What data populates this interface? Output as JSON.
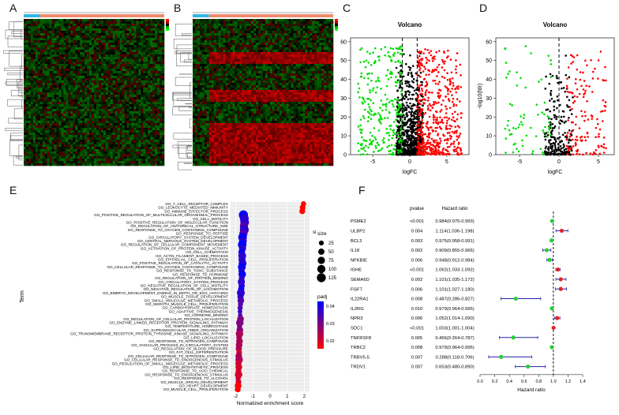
{
  "panels": {
    "A": "A",
    "B": "B",
    "C": "C",
    "D": "D",
    "E": "E",
    "F": "F"
  },
  "chart_data": [
    {
      "panel": "A",
      "type": "heatmap",
      "colors": {
        "high": "#ff0000",
        "mid": "#000000",
        "low": "#00ff00",
        "top_bar_1": "#33b5e5",
        "top_bar_2": "#f08a6c"
      }
    },
    {
      "panel": "B",
      "type": "heatmap",
      "colors": {
        "high": "#ff0000",
        "mid": "#000000",
        "low": "#00ff00",
        "top_bar_1": "#33b5e5",
        "top_bar_2": "#f08a6c"
      }
    },
    {
      "panel": "C",
      "type": "scatter",
      "title": "Volcano",
      "xlabel": "logFC",
      "ylabel": "",
      "xticks": [
        -5,
        0,
        5
      ],
      "yticks": [
        0,
        10,
        20,
        30,
        40,
        50,
        60
      ],
      "xlim": [
        -8,
        8
      ],
      "ylim": [
        0,
        62
      ],
      "thresholds": {
        "x": [
          -1,
          1
        ],
        "y": 2
      },
      "colors": {
        "up": "#ff0000",
        "down": "#00dd00",
        "ns": "#000000"
      }
    },
    {
      "panel": "D",
      "type": "scatter",
      "title": "Volcano",
      "xlabel": "logFC",
      "ylabel": "-log10(fdr)",
      "xticks": [
        -5,
        0,
        5
      ],
      "yticks": [
        0,
        10,
        20,
        30,
        40,
        50,
        60
      ],
      "xlim": [
        -8,
        7
      ],
      "ylim": [
        0,
        62
      ],
      "thresholds": {
        "x": [
          0
        ],
        "y": 0
      },
      "colors": {
        "up": "#ff0000",
        "down": "#00dd00",
        "ns": "#000000"
      }
    },
    {
      "panel": "E",
      "type": "scatter",
      "xlabel": "Normalized enrichment score",
      "ylabel": "Term",
      "xticks": [
        -2,
        -1,
        0,
        1,
        2
      ],
      "xlim": [
        -2.3,
        2.3
      ],
      "terms": [
        "GO_T_CELL_RECEPTOR_COMPLEX",
        "GO_LEUKOCYTE_MEDIATED_IMMUNITY",
        "GO_IMMUNE_EFFECTOR_PROCESS",
        "GO_POSITIVE_REGULATION_OF_MULTICELLULAR_ORGANISMAL_PROCESS",
        "GO_CELL_MOTILITY",
        "GO_POSITIVE_REGULATION_OF_MOLECULAR_FUNCTION",
        "GO_REGULATION_OF_ANATOMICAL_STRUCTURE_SIZE",
        "GO_RESPONSE_TO_OXYGEN_CONTAINING_COMPOUND",
        "GO_RESPONSE_TO_PEPTIDE",
        "GO_CIRCULATORY_SYSTEM_DEVELOPMENT",
        "GO_CENTRAL_NERVOUS_SYSTEM_DEVELOPMENT",
        "GO_REGULATION_OF_CELLULAR_COMPONENT_MOVEMENT",
        "GO_ACTIVATION_OF_PROTEIN_KINASE_ACTIVITY",
        "GO_CELL_CHEMOTAXIS",
        "GO_ACTIN_FILAMENT_BASED_PROCESS",
        "GO_EPITHELIAL_CELL_PROLIFERATION",
        "GO_POSITIVE_REGULATION_OF_CATALYTIC_ACTIVITY",
        "GO_CELLULAR_RESPONSE_TO_OXYGEN_CONTAINING_COMPOUND",
        "GO_RESPONSE_TO_TOXIC_SUBSTANCE",
        "GO_RESPONSE_TO_HORMONE",
        "GO_REGULATION_OF_PROTEIN_BINDING",
        "GO_CIRCULATORY_SYSTEM_PROCESS",
        "GO_NEGATIVE_REGULATION_OF_CELL_MOTILITY",
        "GO_NEGATIVE_REGULATION_OF_LOCOMOTION",
        "GO_EMBRYO_DEVELOPMENT_ENDING_IN_BIRTH_OR_EGG_HATCHING",
        "GO_MUSCLE_TISSUE_DEVELOPMENT",
        "GO_SMALL_MOLECULE_METABOLIC_PROCESS",
        "GO_SMOOTH_MUSCLE_CELL_PROLIFERATION",
        "GO_CARBOHYDRATE_HOMEOSTASIS",
        "GO_ADAPTIVE_THERMOGENESIS",
        "GO_HORMONE_BINDING",
        "GO_REGULATION_OF_CELLULAR_PROTEIN_LOCALIZATION",
        "GO_ENZYME_LINKED_RECEPTOR_PROTEIN_SIGNALING_PATHWAY",
        "GO_TEMPERATURE_HOMEOSTASIS",
        "GO_SUPRAMOLECULAR_FIBER_ORGANIZATION",
        "GO_TRANSMEMBRANE_RECEPTOR_PROTEIN_TYROSINE_KINASE_SIGNALING_PATHWAY",
        "GO_LIPID_LOCALIZATION",
        "GO_RESPONSE_TO_NITROGEN_COMPOUND",
        "GO_VASCULAR_PROCESS_IN_CIRCULATORY_SYSTEM",
        "GO_REGULATION_OF_BLOOD_PRESSURE",
        "GO_FAT_CELL_DIFFERENTIATION",
        "GO_CELLULAR_RESPONSE_TO_NITROGEN_COMPOUND",
        "GO_CELLULAR_RESPONSE_TO_ENDOGENOUS_STIMULUS",
        "GO_REGULATION_OF_SMALL_MOLECULE_METABOLIC_PROCESS",
        "GO_LIPID_BIOSYNTHETIC_PROCESS",
        "GO_RESPONSE_TO_ACID_CHEMICAL",
        "GO_RESPONSE_TO_ENDOGENOUS_STIMULUS",
        "GO_RESPONSE_TO_ALCOHOL",
        "GO_MUSCLE_ORGAN_DEVELOPMENT",
        "GO_HEART_DEVELOPMENT",
        "GO_MUSCLE_CELL_PROLIFERATION"
      ],
      "nes": [
        1.95,
        1.9,
        1.88,
        -1.55,
        -1.5,
        -1.48,
        -1.52,
        -1.5,
        -1.55,
        -1.6,
        -1.58,
        -1.62,
        -1.6,
        -1.65,
        -1.62,
        -1.63,
        -1.6,
        -1.64,
        -1.66,
        -1.62,
        -1.65,
        -1.67,
        -1.65,
        -1.68,
        -1.7,
        -1.72,
        -1.7,
        -1.72,
        -1.74,
        -1.75,
        -1.74,
        -1.72,
        -1.76,
        -1.78,
        -1.76,
        -1.78,
        -1.8,
        -1.78,
        -1.8,
        -1.82,
        -1.8,
        -1.82,
        -1.8,
        -1.84,
        -1.82,
        -1.84,
        -1.83,
        -1.86,
        -1.84,
        -1.86,
        -1.88
      ],
      "size": [
        30,
        40,
        40,
        130,
        120,
        115,
        100,
        120,
        100,
        110,
        90,
        110,
        70,
        60,
        90,
        70,
        90,
        90,
        50,
        80,
        40,
        70,
        50,
        50,
        90,
        50,
        60,
        30,
        30,
        20,
        20,
        60,
        80,
        30,
        60,
        80,
        40,
        60,
        60,
        50,
        40,
        60,
        80,
        50,
        60,
        40,
        80,
        30,
        40,
        60,
        40
      ],
      "padj": [
        0.01,
        0.01,
        0.01,
        0.04,
        0.035,
        0.035,
        0.03,
        0.035,
        0.03,
        0.04,
        0.035,
        0.04,
        0.035,
        0.04,
        0.035,
        0.035,
        0.035,
        0.04,
        0.035,
        0.04,
        0.035,
        0.035,
        0.035,
        0.04,
        0.035,
        0.035,
        0.03,
        0.03,
        0.03,
        0.035,
        0.03,
        0.025,
        0.025,
        0.025,
        0.025,
        0.02,
        0.02,
        0.02,
        0.02,
        0.02,
        0.015,
        0.02,
        0.02,
        0.015,
        0.015,
        0.015,
        0.015,
        0.015,
        0.015,
        0.01,
        0.01
      ],
      "legend": {
        "size_title": "size",
        "size_values": [
          25,
          50,
          75,
          100,
          125
        ],
        "color_title": "padj",
        "color_ticks": [
          "0.04",
          "0.03",
          "0.02"
        ],
        "color_high": "#0000ff",
        "color_low": "#ff0000"
      }
    },
    {
      "panel": "F",
      "type": "table",
      "xlabel": "Hazard ratio",
      "xticks": [
        "0.0",
        "0.2",
        "0.4",
        "0.6",
        "0.8",
        "1.0",
        "1.2",
        "1.4"
      ],
      "xlim": [
        0,
        1.4
      ],
      "headers": {
        "pvalue": "pvalue",
        "hr": "Hazard ratio"
      },
      "rows": [
        {
          "gene": "PSME2",
          "pvalue": "<0.001",
          "hr_text": "0.984(0.975-0.993)",
          "hr": 0.984,
          "lo": 0.975,
          "hi": 0.993
        },
        {
          "gene": "ULBP2",
          "pvalue": "0.004",
          "hr_text": "1.114(1.036-1.198)",
          "hr": 1.114,
          "lo": 1.036,
          "hi": 1.198
        },
        {
          "gene": "BCL3",
          "pvalue": "0.003",
          "hr_text": "0.975(0.958-0.991)",
          "hr": 0.975,
          "lo": 0.958,
          "hi": 0.991
        },
        {
          "gene": "IL18",
          "pvalue": "0.002",
          "hr_text": "0.909(0.855-0.966)",
          "hr": 0.909,
          "lo": 0.855,
          "hi": 0.966
        },
        {
          "gene": "NFKBIE",
          "pvalue": "0.006",
          "hr_text": "0.948(0.912-0.984)",
          "hr": 0.948,
          "lo": 0.912,
          "hi": 0.984
        },
        {
          "gene": "IGHE",
          "pvalue": "<0.001",
          "hr_text": "1.062(1.033-1.092)",
          "hr": 1.062,
          "lo": 1.033,
          "hi": 1.092
        },
        {
          "gene": "SEMA6D",
          "pvalue": "0.002",
          "hr_text": "1.101(1.035-1.172)",
          "hr": 1.101,
          "lo": 1.035,
          "hi": 1.172
        },
        {
          "gene": "FGF7",
          "pvalue": "0.006",
          "hr_text": "1.101(1.027-1.180)",
          "hr": 1.101,
          "lo": 1.027,
          "hi": 1.18
        },
        {
          "gene": "IL22RA1",
          "pvalue": "0.008",
          "hr_text": "0.487(0.286-0.827)",
          "hr": 0.487,
          "lo": 0.286,
          "hi": 0.827
        },
        {
          "gene": "IL2RG",
          "pvalue": "0.010",
          "hr_text": "0.979(0.964-0.995)",
          "hr": 0.979,
          "lo": 0.964,
          "hi": 0.995
        },
        {
          "gene": "NPR3",
          "pvalue": "0.006",
          "hr_text": "1.052(1.014-1.090)",
          "hr": 1.052,
          "lo": 1.014,
          "hi": 1.09
        },
        {
          "gene": "SDC1",
          "pvalue": "<0.001",
          "hr_text": "1.003(1.001-1.004)",
          "hr": 1.003,
          "lo": 1.001,
          "hi": 1.004
        },
        {
          "gene": "TNFRSF8",
          "pvalue": "0.005",
          "hr_text": "0.456(0.264-0.787)",
          "hr": 0.456,
          "lo": 0.264,
          "hi": 0.787
        },
        {
          "gene": "TRBC2",
          "pvalue": "0.008",
          "hr_text": "0.979(0.964-0.995)",
          "hr": 0.979,
          "lo": 0.964,
          "hi": 0.995
        },
        {
          "gene": "TRBV5-5",
          "pvalue": "0.007",
          "hr_text": "0.288(0.118-0.706)",
          "hr": 0.288,
          "lo": 0.118,
          "hi": 0.706
        },
        {
          "gene": "TRDV1",
          "pvalue": "0.007",
          "hr_text": "0.653(0.480-0.890)",
          "hr": 0.653,
          "lo": 0.48,
          "hi": 0.89
        }
      ]
    }
  ]
}
